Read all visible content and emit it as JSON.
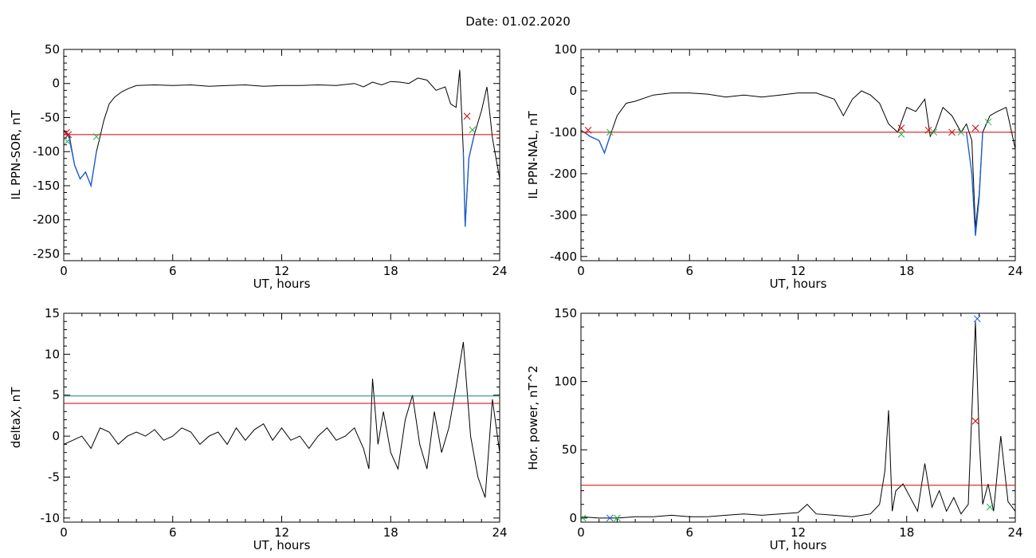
{
  "header": {
    "date_label": "Date:  01.02.2020"
  },
  "chart_data": [
    {
      "type": "line",
      "xlabel": "UT, hours",
      "ylabel": "IL PPN-SOR, nT",
      "xlim": [
        0,
        24
      ],
      "ylim": [
        -260,
        50
      ],
      "xticks": [
        0,
        6,
        12,
        18,
        24
      ],
      "yticks": [
        -250,
        -200,
        -150,
        -100,
        -50,
        0,
        50
      ],
      "series": [
        {
          "color": "#000000",
          "x": [
            0,
            0.3,
            0.6,
            0.9,
            1.2,
            1.5,
            1.8,
            2.0,
            2.2,
            2.5,
            2.8,
            3.2,
            3.6,
            4.0,
            5.0,
            6.0,
            7.0,
            8.0,
            9.0,
            10.0,
            11.0,
            12.0,
            13.0,
            14.0,
            15.0,
            16.0,
            16.5,
            17.0,
            17.5,
            18.0,
            18.5,
            19.0,
            19.5,
            20.0,
            20.5,
            21.0,
            21.3,
            21.6,
            21.8,
            22.0,
            22.1,
            22.3,
            22.6,
            23.0,
            23.3,
            23.6,
            24.0
          ],
          "y": [
            -70,
            -75,
            -120,
            -140,
            -130,
            -150,
            -100,
            -78,
            -55,
            -30,
            -20,
            -12,
            -7,
            -3,
            -2,
            -3,
            -2,
            -4,
            -3,
            -2,
            -4,
            -3,
            -3,
            -2,
            -3,
            0,
            -5,
            2,
            -2,
            3,
            2,
            0,
            8,
            5,
            -10,
            -5,
            -30,
            -35,
            20,
            -100,
            -210,
            -110,
            -75,
            -40,
            -5,
            -80,
            -140
          ]
        },
        {
          "color": "#1f5fd0",
          "x": [
            0.1,
            0.3,
            0.6,
            0.9,
            1.2,
            1.5,
            1.8
          ],
          "y": [
            -72,
            -80,
            -120,
            -140,
            -130,
            -150,
            -100
          ]
        },
        {
          "color": "#1f5fd0",
          "x": [
            22.0,
            22.1,
            22.3,
            22.6
          ],
          "y": [
            -100,
            -210,
            -110,
            -75
          ]
        }
      ],
      "thresholds": [
        {
          "y": -75,
          "color": "#d00000"
        }
      ],
      "markers": [
        {
          "x": 0.15,
          "y": -72,
          "color": "#d00000"
        },
        {
          "x": 0.25,
          "y": -75,
          "color": "#d00000"
        },
        {
          "x": 0.2,
          "y": -85,
          "color": "#22b14c"
        },
        {
          "x": 1.8,
          "y": -78,
          "color": "#22b14c"
        },
        {
          "x": 22.2,
          "y": -48,
          "color": "#d00000"
        },
        {
          "x": 22.5,
          "y": -68,
          "color": "#22b14c"
        }
      ]
    },
    {
      "type": "line",
      "xlabel": "UT, hours",
      "ylabel": "IL PPN-NAL, nT",
      "xlim": [
        0,
        24
      ],
      "ylim": [
        -410,
        100
      ],
      "xticks": [
        0,
        6,
        12,
        18,
        24
      ],
      "yticks": [
        -400,
        -300,
        -200,
        -100,
        0,
        100
      ],
      "series": [
        {
          "color": "#000000",
          "x": [
            0,
            0.5,
            1.0,
            1.3,
            1.6,
            2.0,
            2.5,
            3.0,
            4.0,
            5.0,
            6.0,
            7.0,
            8.0,
            9.0,
            10.0,
            11.0,
            12.0,
            13.0,
            14.0,
            14.5,
            15.0,
            15.5,
            16.0,
            16.5,
            17.0,
            17.5,
            18.0,
            18.5,
            19.0,
            19.3,
            19.6,
            20.0,
            20.5,
            21.0,
            21.3,
            21.6,
            21.8,
            22.0,
            22.2,
            22.4,
            22.6,
            23.0,
            23.5,
            24.0
          ],
          "y": [
            -95,
            -110,
            -120,
            -150,
            -110,
            -60,
            -30,
            -25,
            -10,
            -5,
            -5,
            -8,
            -15,
            -10,
            -15,
            -10,
            -5,
            -5,
            -20,
            -60,
            -20,
            0,
            -10,
            -30,
            -80,
            -100,
            -40,
            -50,
            -20,
            -110,
            -90,
            -40,
            -60,
            -100,
            -80,
            -120,
            -330,
            -250,
            -100,
            -80,
            -60,
            -50,
            -40,
            -140
          ]
        },
        {
          "color": "#1f5fd0",
          "x": [
            0.2,
            0.5,
            1.0,
            1.3,
            1.6
          ],
          "y": [
            -100,
            -110,
            -120,
            -150,
            -110
          ]
        },
        {
          "color": "#1f5fd0",
          "x": [
            21.3,
            21.6,
            21.8,
            22.0,
            22.2
          ],
          "y": [
            -100,
            -200,
            -350,
            -260,
            -100
          ]
        }
      ],
      "thresholds": [
        {
          "y": -100,
          "color": "#d00000"
        }
      ],
      "markers": [
        {
          "x": 0.4,
          "y": -95,
          "color": "#d00000"
        },
        {
          "x": 17.7,
          "y": -90,
          "color": "#d00000"
        },
        {
          "x": 17.7,
          "y": -105,
          "color": "#22b14c"
        },
        {
          "x": 19.2,
          "y": -95,
          "color": "#d00000"
        },
        {
          "x": 19.5,
          "y": -100,
          "color": "#22b14c"
        },
        {
          "x": 20.5,
          "y": -100,
          "color": "#d00000"
        },
        {
          "x": 21.0,
          "y": -100,
          "color": "#22b14c"
        },
        {
          "x": 21.8,
          "y": -90,
          "color": "#d00000"
        },
        {
          "x": 22.5,
          "y": -75,
          "color": "#22b14c"
        },
        {
          "x": 1.6,
          "y": -100,
          "color": "#22b14c"
        }
      ]
    },
    {
      "type": "line",
      "xlabel": "UT, hours",
      "ylabel": "deltaX, nT",
      "xlim": [
        0,
        24
      ],
      "ylim": [
        -10.5,
        15
      ],
      "xticks": [
        0,
        6,
        12,
        18,
        24
      ],
      "yticks": [
        -10,
        -5,
        0,
        5,
        10,
        15
      ],
      "series": [
        {
          "color": "#000000",
          "x": [
            0,
            0.5,
            1.0,
            1.5,
            2.0,
            2.5,
            3.0,
            3.5,
            4.0,
            4.5,
            5.0,
            5.5,
            6.0,
            6.5,
            7.0,
            7.5,
            8.0,
            8.5,
            9.0,
            9.5,
            10.0,
            10.5,
            11.0,
            11.5,
            12.0,
            12.5,
            13.0,
            13.5,
            14.0,
            14.5,
            15.0,
            15.5,
            16.0,
            16.5,
            16.8,
            17.0,
            17.3,
            17.6,
            18.0,
            18.4,
            18.8,
            19.2,
            19.6,
            20.0,
            20.4,
            20.8,
            21.2,
            21.6,
            22.0,
            22.4,
            22.8,
            23.2,
            23.6,
            24.0
          ],
          "y": [
            -1,
            -0.5,
            0,
            -1.5,
            1,
            0.5,
            -1,
            0,
            0.5,
            0,
            0.8,
            -0.5,
            0,
            1,
            0.5,
            -1,
            0,
            0.5,
            -1,
            1,
            -0.5,
            0.8,
            1.5,
            -0.5,
            1,
            -0.5,
            0,
            -1.5,
            0,
            1,
            -0.5,
            0,
            1,
            -1.5,
            -4,
            7,
            -1,
            3,
            -2,
            -4,
            2,
            5,
            -1,
            -4,
            3,
            -2,
            1,
            6,
            11.5,
            0,
            -5,
            -7.5,
            4.5,
            -2
          ]
        }
      ],
      "thresholds": [
        {
          "y": 4.9,
          "color": "#1b7f8a"
        },
        {
          "y": 4.0,
          "color": "#d00000"
        }
      ],
      "markers": []
    },
    {
      "type": "line",
      "xlabel": "UT, hours",
      "ylabel": "Hor. power, nT^2",
      "xlim": [
        0,
        24
      ],
      "ylim": [
        -3,
        150
      ],
      "xticks": [
        0,
        6,
        12,
        18,
        24
      ],
      "yticks": [
        0,
        50,
        100,
        150
      ],
      "series": [
        {
          "color": "#000000",
          "x": [
            0,
            1,
            2,
            3,
            4,
            5,
            6,
            7,
            8,
            9,
            10,
            11,
            12,
            12.5,
            13,
            14,
            15,
            16,
            16.5,
            16.8,
            17.0,
            17.2,
            17.4,
            17.8,
            18.2,
            18.6,
            19.0,
            19.4,
            19.8,
            20.2,
            20.6,
            21.0,
            21.4,
            21.8,
            22.0,
            22.2,
            22.5,
            22.8,
            23.2,
            23.6,
            24.0
          ],
          "y": [
            1,
            0,
            0,
            1,
            1,
            2,
            1,
            1,
            2,
            3,
            2,
            3,
            4,
            10,
            3,
            2,
            1,
            3,
            10,
            35,
            79,
            5,
            20,
            25,
            15,
            5,
            40,
            8,
            20,
            5,
            15,
            3,
            10,
            144,
            60,
            10,
            25,
            5,
            60,
            12,
            5
          ]
        }
      ],
      "thresholds": [
        {
          "y": 24,
          "color": "#d00000"
        }
      ],
      "markers": [
        {
          "x": 0.1,
          "y": 0,
          "color": "#22b14c"
        },
        {
          "x": 1.6,
          "y": 0,
          "color": "#1f5fd0"
        },
        {
          "x": 2.0,
          "y": 0,
          "color": "#22b14c"
        },
        {
          "x": 21.9,
          "y": 146,
          "color": "#1f5fd0"
        },
        {
          "x": 21.8,
          "y": 71,
          "color": "#d00000"
        },
        {
          "x": 22.6,
          "y": 8,
          "color": "#22b14c"
        }
      ]
    }
  ]
}
